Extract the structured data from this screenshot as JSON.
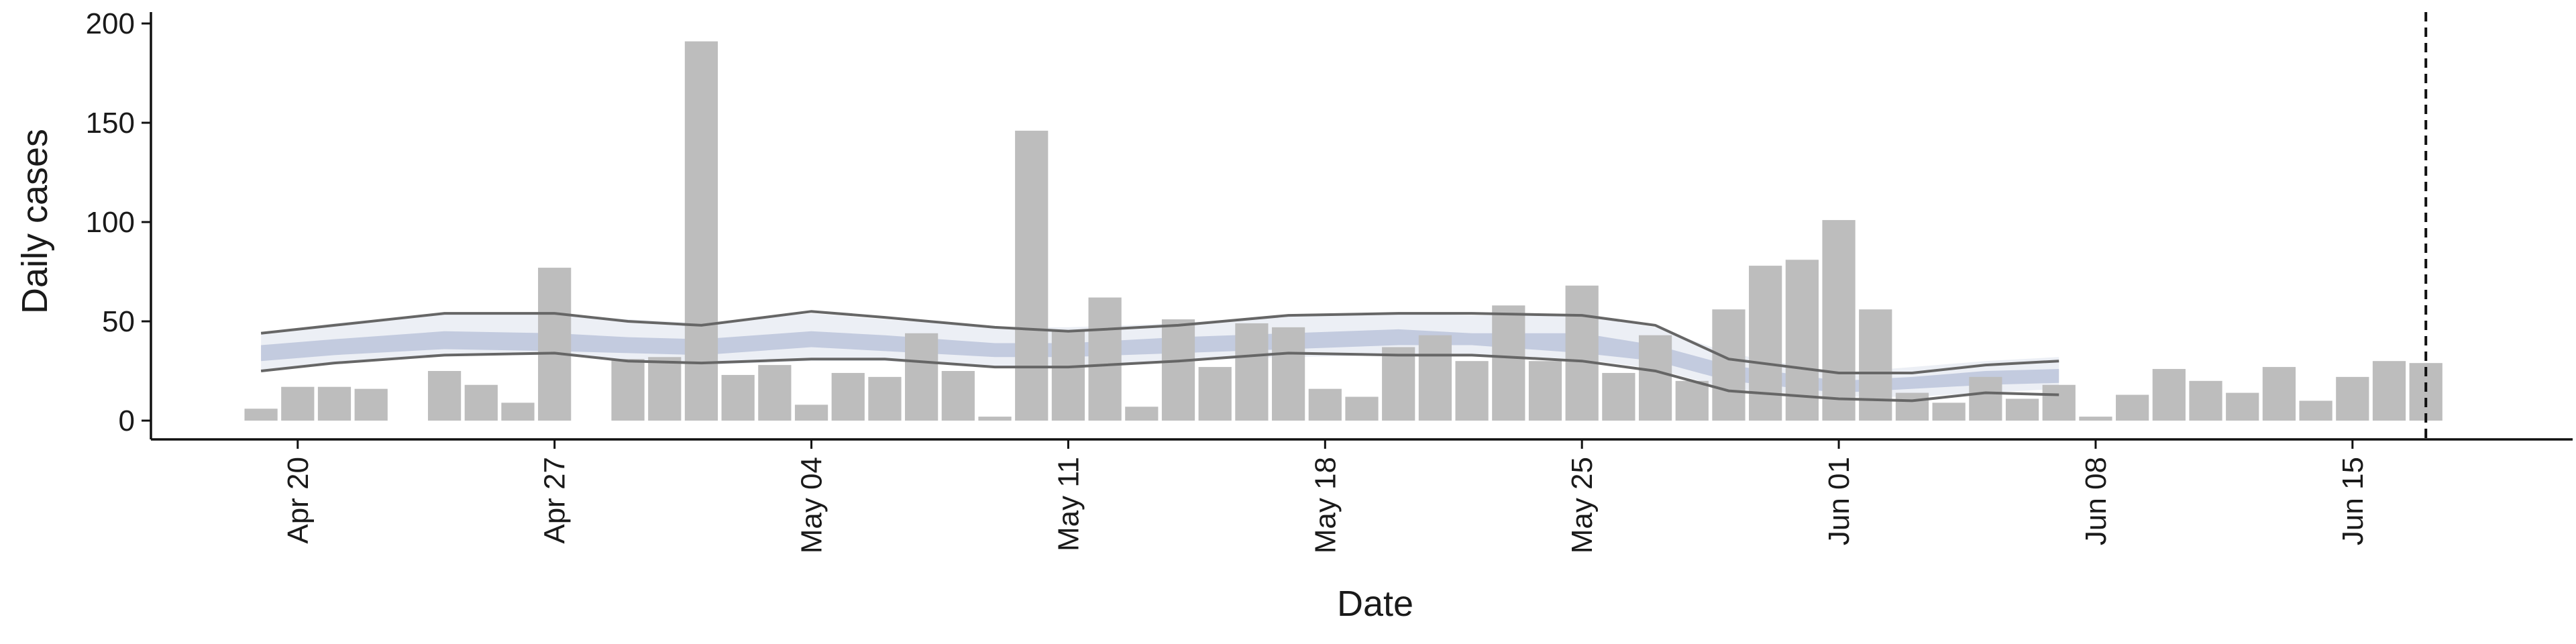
{
  "chart_data": {
    "type": "bar",
    "xlabel": "Date",
    "ylabel": "Daily cases",
    "ylim": [
      0,
      200
    ],
    "yticks": [
      0,
      50,
      100,
      150,
      200
    ],
    "x_axis_range": [
      "2020-04-16",
      "2020-06-21"
    ],
    "xtick_labels": [
      {
        "date": "2020-04-20",
        "label": "Apr 20"
      },
      {
        "date": "2020-04-27",
        "label": "Apr 27"
      },
      {
        "date": "2020-05-04",
        "label": "May 04"
      },
      {
        "date": "2020-05-11",
        "label": "May 11"
      },
      {
        "date": "2020-05-18",
        "label": "May 18"
      },
      {
        "date": "2020-05-25",
        "label": "May 25"
      },
      {
        "date": "2020-06-01",
        "label": "Jun 01"
      },
      {
        "date": "2020-06-08",
        "label": "Jun 08"
      },
      {
        "date": "2020-06-15",
        "label": "Jun 15"
      }
    ],
    "start_date": "2020-04-19",
    "daily_cases": [
      6,
      17,
      17,
      16,
      0,
      25,
      18,
      9,
      77,
      0,
      31,
      32,
      191,
      23,
      28,
      8,
      24,
      22,
      44,
      25,
      2,
      146,
      45,
      62,
      7,
      51,
      27,
      49,
      47,
      16,
      12,
      37,
      43,
      30,
      58,
      30,
      68,
      24,
      43,
      20,
      56,
      78,
      81,
      101,
      56,
      14,
      9,
      22,
      11,
      18,
      2,
      13,
      26,
      20,
      14,
      27,
      10,
      22,
      30,
      29
    ],
    "vline_date": "2020-06-17",
    "bar_color": "#bdbdbd",
    "band_color": "#8a99c2",
    "line_color": "#666666",
    "estimate_bands": {
      "dates": [
        "2020-04-19",
        "2020-04-21",
        "2020-04-24",
        "2020-04-27",
        "2020-04-29",
        "2020-05-01",
        "2020-05-04",
        "2020-05-06",
        "2020-05-09",
        "2020-05-11",
        "2020-05-14",
        "2020-05-17",
        "2020-05-20",
        "2020-05-22",
        "2020-05-25",
        "2020-05-27",
        "2020-05-29",
        "2020-06-01",
        "2020-06-03",
        "2020-06-05",
        "2020-06-07"
      ],
      "lower90": [
        25,
        29,
        33,
        33,
        30,
        28,
        30,
        30,
        27,
        27,
        30,
        32,
        33,
        33,
        31,
        26,
        16,
        12,
        12,
        14,
        16
      ],
      "upper90": [
        44,
        49,
        54,
        54,
        51,
        49,
        54,
        51,
        47,
        47,
        49,
        53,
        54,
        53,
        53,
        47,
        34,
        24,
        27,
        30,
        32
      ],
      "lower50": [
        30,
        33,
        36,
        35,
        34,
        33,
        37,
        35,
        32,
        32,
        34,
        36,
        38,
        38,
        34,
        30,
        20,
        14,
        16,
        18,
        19
      ],
      "upper50": [
        38,
        41,
        45,
        44,
        42,
        41,
        45,
        43,
        39,
        39,
        42,
        44,
        46,
        44,
        44,
        38,
        28,
        20,
        22,
        25,
        26
      ],
      "lower_line": [
        25,
        29,
        33,
        34,
        30,
        29,
        31,
        31,
        27,
        27,
        30,
        34,
        33,
        33,
        30,
        25,
        15,
        11,
        10,
        14,
        13
      ],
      "upper_line": [
        44,
        48,
        54,
        54,
        50,
        48,
        55,
        52,
        47,
        45,
        48,
        53,
        54,
        54,
        53,
        48,
        31,
        24,
        24,
        28,
        30
      ]
    }
  }
}
